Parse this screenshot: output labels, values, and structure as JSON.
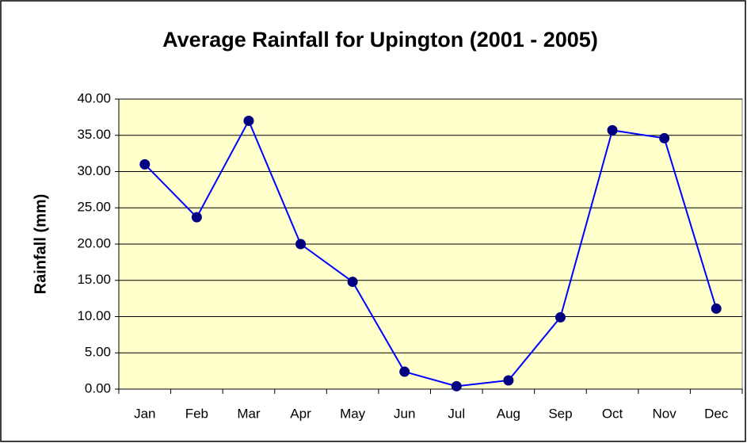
{
  "chart_data": {
    "type": "line",
    "title": "Average Rainfall for Upington (2001 - 2005)",
    "y_label": "Rainfall (mm)",
    "categories": [
      "Jan",
      "Feb",
      "Mar",
      "Apr",
      "May",
      "Jun",
      "Jul",
      "Aug",
      "Sep",
      "Oct",
      "Nov",
      "Dec"
    ],
    "series": [
      {
        "name": "Rainfall",
        "color": "#0000ff",
        "marker_color": "#000080",
        "values": [
          31.0,
          23.7,
          37.0,
          20.0,
          14.8,
          2.4,
          0.4,
          1.2,
          9.9,
          35.7,
          34.6,
          11.1
        ]
      }
    ],
    "ylim": [
      0,
      40
    ],
    "yticks": [
      {
        "value": 0,
        "label": "0.00"
      },
      {
        "value": 5,
        "label": "5.00"
      },
      {
        "value": 10,
        "label": "10.00"
      },
      {
        "value": 15,
        "label": "15.00"
      },
      {
        "value": 20,
        "label": "20.00"
      },
      {
        "value": 25,
        "label": "25.00"
      },
      {
        "value": 30,
        "label": "30.00"
      },
      {
        "value": 35,
        "label": "35.00"
      },
      {
        "value": 40,
        "label": "40.00"
      }
    ],
    "grid": true,
    "plot_background": "#ffffcc"
  }
}
